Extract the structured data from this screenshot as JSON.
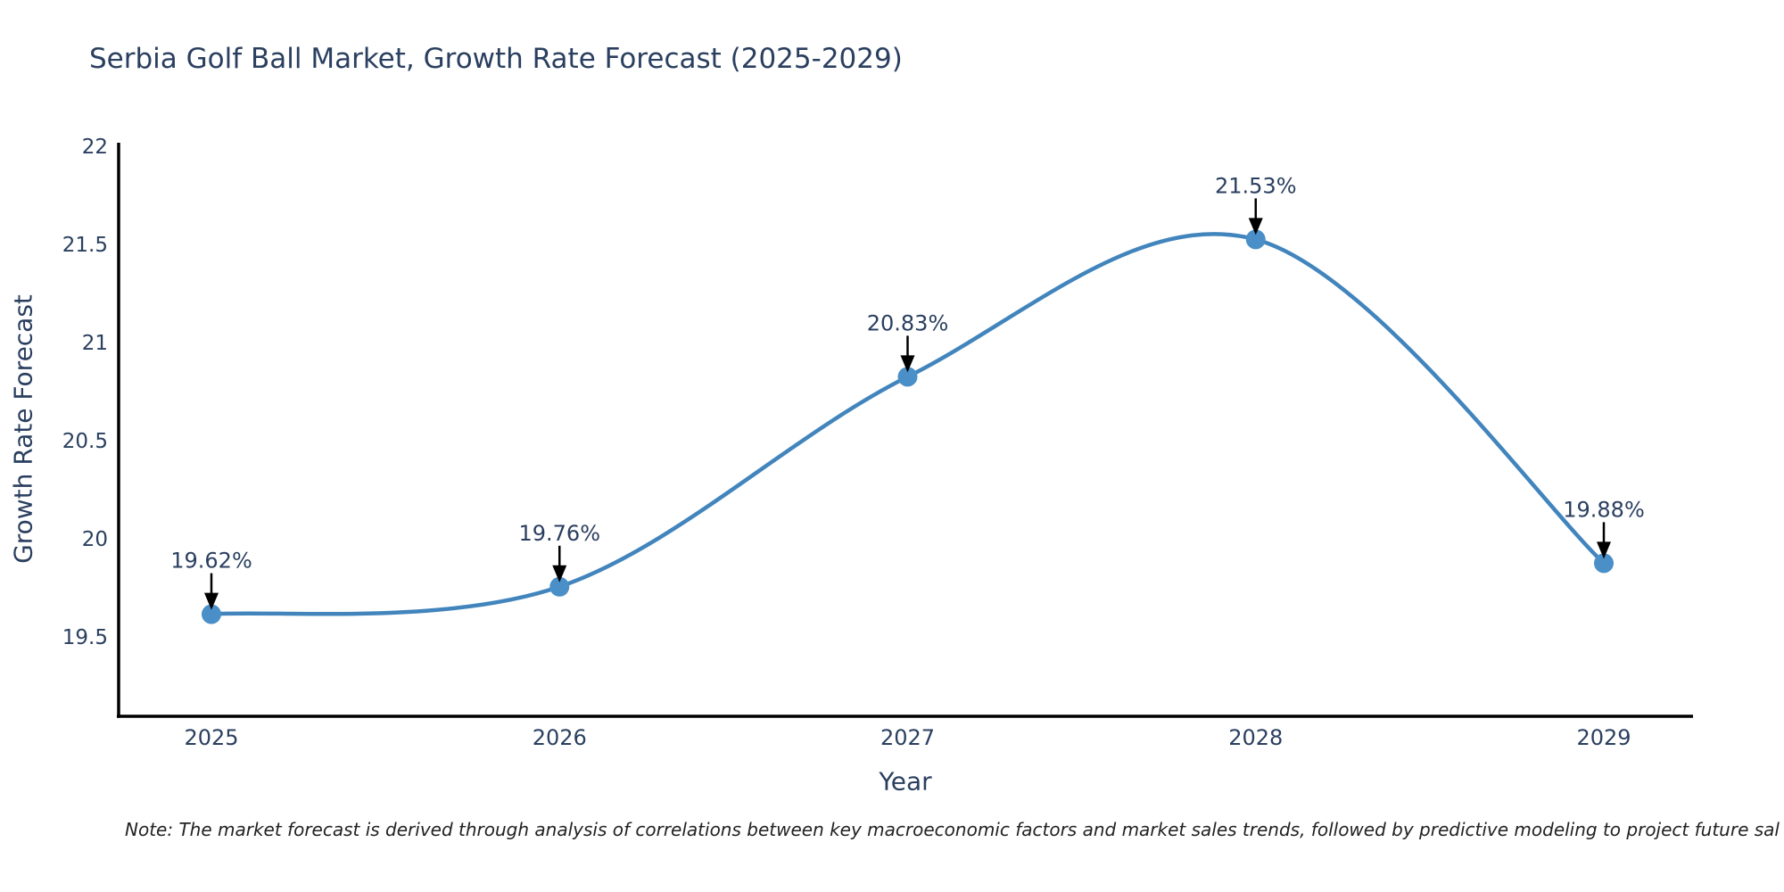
{
  "chart_data": {
    "type": "line",
    "title": "Serbia Golf Ball Market, Growth Rate Forecast (2025-2029)",
    "xlabel": "Year",
    "ylabel": "Growth Rate Forecast",
    "x": [
      2025,
      2026,
      2027,
      2028,
      2029
    ],
    "series": [
      {
        "name": "Growth Rate Forecast",
        "values": [
          19.62,
          19.76,
          20.83,
          21.53,
          19.88
        ],
        "point_labels": [
          "19.62%",
          "19.76%",
          "20.83%",
          "21.53%",
          "19.88%"
        ]
      }
    ],
    "x_tick_labels": [
      "2025",
      "2026",
      "2027",
      "2028",
      "2029"
    ],
    "y_ticks": [
      19.5,
      20,
      20.5,
      21,
      21.5,
      22
    ],
    "y_tick_labels": [
      "19.5",
      "20",
      "20.5",
      "21",
      "21.5",
      "22"
    ],
    "ylim": [
      19.1,
      22.02
    ],
    "xlim": [
      2024.73,
      2029.26
    ],
    "line_shape": "spline",
    "grid": false,
    "legend_position": "none",
    "colors": {
      "line": "#4285bd",
      "marker": "#4a8fc7",
      "text": "#2a3f5f",
      "axis": "#000000",
      "annotation_text": "#2a3f5f",
      "annotation_arrow": "#000000",
      "background": "#ffffff"
    }
  },
  "note": "Note: The market forecast is derived through analysis of correlations between key macroeconomic factors and market sales trends, followed by predictive modeling to project future sal"
}
